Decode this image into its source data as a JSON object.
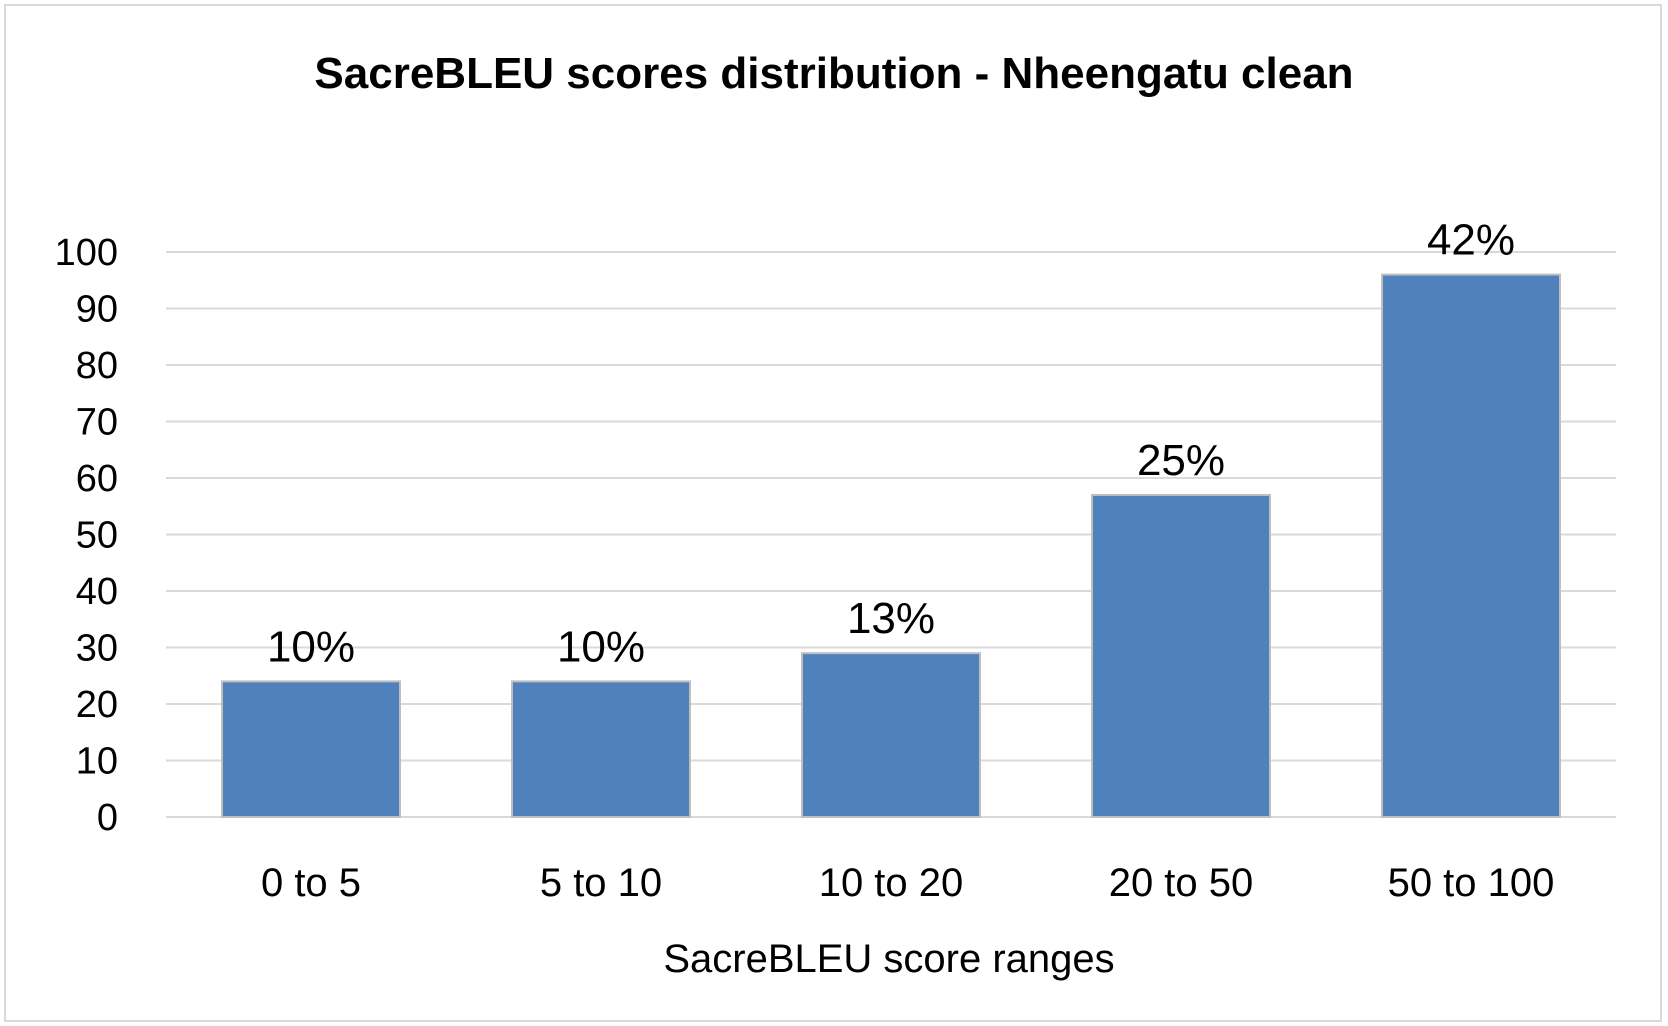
{
  "chart_data": {
    "type": "bar",
    "title": "SacreBLEU scores distribution - Nheengatu clean",
    "xlabel": "SacreBLEU score ranges",
    "ylabel": "",
    "categories": [
      "0 to 5",
      "5 to 10",
      "10 to 20",
      "20 to 50",
      "50 to 100"
    ],
    "values": [
      24,
      24,
      29,
      57,
      96
    ],
    "data_labels": [
      "10%",
      "10%",
      "13%",
      "25%",
      "42%"
    ],
    "ylim": [
      0,
      100
    ],
    "yticks": [
      "0",
      "10",
      "20",
      "30",
      "40",
      "50",
      "60",
      "70",
      "80",
      "90",
      "100"
    ],
    "grid": true,
    "legend": "none",
    "bar_color": "#4f81bd",
    "bar_border_color": "#bfbfbf",
    "grid_color": "#d9d9d9"
  }
}
